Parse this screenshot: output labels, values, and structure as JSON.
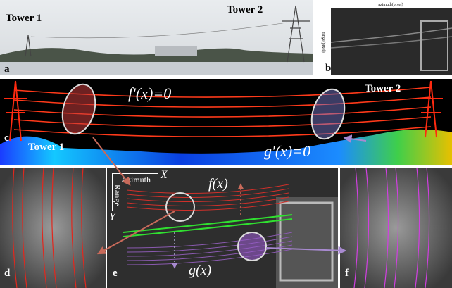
{
  "panels": {
    "a": {
      "label": "a",
      "tower_1": "Tower 1",
      "tower_2": "Tower 2"
    },
    "b": {
      "label": "b",
      "x_axis": "azimuth(pixel)",
      "y_axis": "range(pixel)"
    },
    "c": {
      "label": "c",
      "tower_1": "Tower 1",
      "tower_2": "Tower 2",
      "f_prime": "f′(x)=0",
      "g_prime": "g′(x)=0"
    },
    "d": {
      "label": "d"
    },
    "e": {
      "label": "e",
      "azimuth": "Azimuth",
      "x": "X",
      "range": "Range",
      "y": "Y",
      "f": "f(x)",
      "g": "g(x)"
    },
    "f": {
      "label": "f"
    }
  }
}
